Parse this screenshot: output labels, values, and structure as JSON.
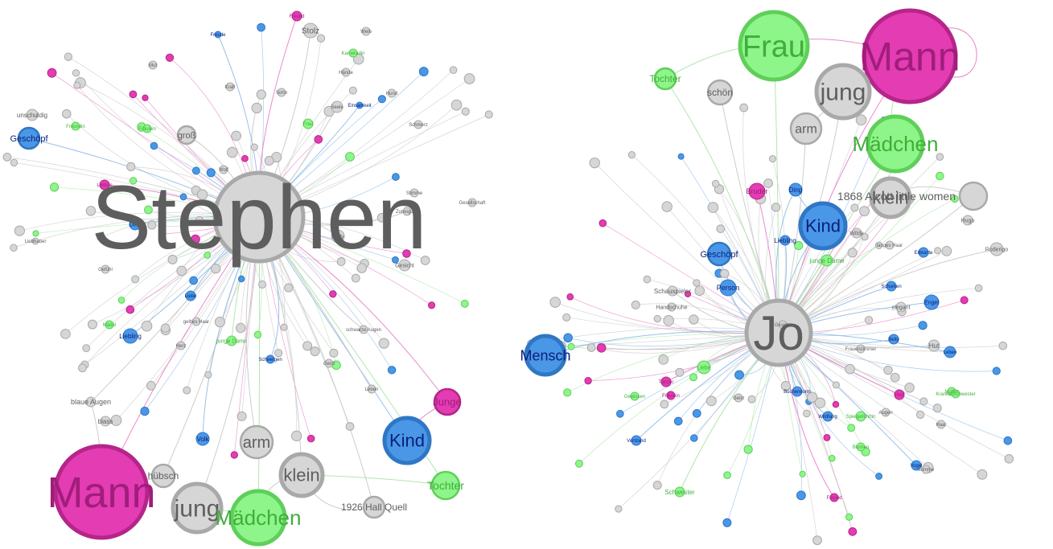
{
  "colors": {
    "gray_fill": "#d6d6d6",
    "gray_stroke": "#a9a9a9",
    "gray_text": "#5e5e5e",
    "blue_fill": "#4a97e8",
    "blue_stroke": "#2f77c4",
    "blue_text": "#0a1f7a",
    "green_fill": "#8ef58a",
    "green_stroke": "#5fcf5a",
    "green_text": "#3fae3a",
    "pink_fill": "#e43cb2",
    "pink_stroke": "#b5258a",
    "pink_text": "#a01d7c",
    "edge_gray": "#c8c8c8",
    "edge_blue": "#8cbbe8",
    "edge_green": "#a9e6a5",
    "edge_pink": "#ea7dc8"
  },
  "left_graph": {
    "name": "1926 Hall Quell network",
    "nodes": [
      {
        "id": "l1",
        "label": "Stephen",
        "cat": "gray"
      },
      {
        "id": "l2",
        "label": "Mann",
        "cat": "pink"
      },
      {
        "id": "l3",
        "label": "jung",
        "cat": "gray"
      },
      {
        "id": "l4",
        "label": "Mädchen",
        "cat": "green"
      },
      {
        "id": "l5",
        "label": "klein",
        "cat": "gray"
      },
      {
        "id": "l6",
        "label": "Kind",
        "cat": "blue"
      },
      {
        "id": "l7",
        "label": "arm",
        "cat": "gray"
      },
      {
        "id": "l8",
        "label": "hübsch",
        "cat": "gray"
      },
      {
        "id": "l9",
        "label": "Tochter",
        "cat": "green"
      },
      {
        "id": "l10",
        "label": "Junge",
        "cat": "pink"
      },
      {
        "id": "l11",
        "label": "1926 Hall Quell",
        "cat": "gray"
      },
      {
        "id": "l12",
        "label": "Geschöpf",
        "cat": "blue"
      },
      {
        "id": "l13",
        "label": "groß",
        "cat": "gray"
      },
      {
        "id": "l14",
        "label": "Stolz",
        "cat": "gray"
      },
      {
        "id": "l15",
        "label": "unschuldig",
        "cat": "gray"
      },
      {
        "id": "l16",
        "label": "blaue Augen",
        "cat": "gray"
      },
      {
        "id": "l17",
        "label": "blass",
        "cat": "gray"
      },
      {
        "id": "l18",
        "label": "Volk",
        "cat": "blue"
      },
      {
        "id": "l19",
        "label": "Liebling",
        "cat": "blue"
      },
      {
        "id": "l20",
        "label": "Ding",
        "cat": "blue"
      },
      {
        "id": "l21",
        "label": "Lady",
        "cat": "gray"
      },
      {
        "id": "l22",
        "label": "Gesicht",
        "cat": "gray"
      },
      {
        "id": "l23",
        "label": "junge Dame",
        "cat": "green"
      },
      {
        "id": "l24",
        "label": "Liebe",
        "cat": "blue"
      },
      {
        "id": "l25",
        "label": "Mut",
        "cat": "gray"
      },
      {
        "id": "l26",
        "label": "Kraft",
        "cat": "gray"
      },
      {
        "id": "l27",
        "label": "Hund",
        "cat": "gray"
      },
      {
        "id": "l28",
        "label": "Seele",
        "cat": "gray"
      },
      {
        "id": "l29",
        "label": "Zuneigung",
        "cat": "gray"
      },
      {
        "id": "l30",
        "label": "Schweigen",
        "cat": "blue"
      },
      {
        "id": "l31",
        "label": "Freundin",
        "cat": "green"
      },
      {
        "id": "l32",
        "label": "Sohn",
        "cat": "gray"
      },
      {
        "id": "l33",
        "label": "Wolf",
        "cat": "gray"
      },
      {
        "id": "l34",
        "label": "Hände",
        "cat": "gray"
      },
      {
        "id": "l35",
        "label": "Fräulein",
        "cat": "green"
      },
      {
        "id": "l36",
        "label": "Frau",
        "cat": "green"
      },
      {
        "id": "l37",
        "label": "Einsamkeit",
        "cat": "blue"
      },
      {
        "id": "l38",
        "label": "Weib",
        "cat": "gray"
      },
      {
        "id": "l39",
        "label": "Schmerz",
        "cat": "gray"
      },
      {
        "id": "l40",
        "label": "Freund",
        "cat": "pink"
      },
      {
        "id": "l41",
        "label": "gelbes Haar",
        "cat": "gray"
      },
      {
        "id": "l42",
        "label": "schwarze Augen",
        "cat": "gray"
      },
      {
        "id": "l43",
        "label": "Gefühl",
        "cat": "gray"
      },
      {
        "id": "l44",
        "label": "Liebhaber",
        "cat": "gray"
      },
      {
        "id": "l45",
        "label": "Leben",
        "cat": "gray"
      },
      {
        "id": "l46",
        "label": "Gesellschaft",
        "cat": "gray"
      },
      {
        "id": "l47",
        "label": "Freude",
        "cat": "blue"
      },
      {
        "id": "l48",
        "label": "Herz",
        "cat": "gray"
      },
      {
        "id": "l49",
        "label": "Geist",
        "cat": "gray"
      },
      {
        "id": "l50",
        "label": "Stimme",
        "cat": "gray"
      },
      {
        "id": "l51",
        "label": "Mädel",
        "cat": "green"
      },
      {
        "id": "l52",
        "label": "Liebste",
        "cat": "pink"
      },
      {
        "id": "l53",
        "label": "Kameradin",
        "cat": "green"
      }
    ]
  },
  "right_graph": {
    "name": "1868 Alcott little women network",
    "nodes": [
      {
        "id": "r1",
        "label": "Jo",
        "cat": "gray"
      },
      {
        "id": "r2",
        "label": "Mann",
        "cat": "pink"
      },
      {
        "id": "r3",
        "label": "Frau",
        "cat": "green"
      },
      {
        "id": "r4",
        "label": "jung",
        "cat": "gray"
      },
      {
        "id": "r5",
        "label": "Mädchen",
        "cat": "green"
      },
      {
        "id": "r6",
        "label": "klein",
        "cat": "gray"
      },
      {
        "id": "r7",
        "label": "1868 Alcott little women",
        "cat": "gray"
      },
      {
        "id": "r8",
        "label": "Kind",
        "cat": "blue"
      },
      {
        "id": "r9",
        "label": "Mensch",
        "cat": "blue"
      },
      {
        "id": "r10",
        "label": "arm",
        "cat": "gray"
      },
      {
        "id": "r11",
        "label": "schön",
        "cat": "gray"
      },
      {
        "id": "r12",
        "label": "Tochter",
        "cat": "green"
      },
      {
        "id": "r13",
        "label": "Geschöpf",
        "cat": "blue"
      },
      {
        "id": "r14",
        "label": "Person",
        "cat": "blue"
      },
      {
        "id": "r15",
        "label": "Ding",
        "cat": "blue"
      },
      {
        "id": "r16",
        "label": "Bruder",
        "cat": "pink"
      },
      {
        "id": "r17",
        "label": "Liebling",
        "cat": "blue"
      },
      {
        "id": "r18",
        "label": "junge Dame",
        "cat": "green"
      },
      {
        "id": "r19",
        "label": "Schauspieler",
        "cat": "gray"
      },
      {
        "id": "r20",
        "label": "Handschuhe",
        "cat": "gray"
      },
      {
        "id": "r21",
        "label": "Hut",
        "cat": "gray"
      },
      {
        "id": "r22",
        "label": "Engel",
        "cat": "blue"
      },
      {
        "id": "r23",
        "label": "Hugo",
        "cat": "gray"
      },
      {
        "id": "r24",
        "label": "Roderigo",
        "cat": "gray"
      },
      {
        "id": "r25",
        "label": "Wilde",
        "cat": "gray"
      },
      {
        "id": "r26",
        "label": "Schwester",
        "cat": "green"
      },
      {
        "id": "r27",
        "label": "Liebe",
        "cat": "green"
      },
      {
        "id": "r28",
        "label": "elegant",
        "cat": "gray"
      },
      {
        "id": "r29",
        "label": "Betty",
        "cat": "blue"
      },
      {
        "id": "r30",
        "label": "Leben",
        "cat": "blue"
      },
      {
        "id": "r31",
        "label": "langes Haar",
        "cat": "gray"
      },
      {
        "id": "r32",
        "label": "Erbtante",
        "cat": "blue"
      },
      {
        "id": "r33",
        "label": "Schurken",
        "cat": "blue"
      },
      {
        "id": "r34",
        "label": "Frauenzimmer",
        "cat": "gray"
      },
      {
        "id": "r35",
        "label": "Bücherwurm",
        "cat": "blue"
      },
      {
        "id": "r36",
        "label": "Wildfang",
        "cat": "blue"
      },
      {
        "id": "r37",
        "label": "Spielgefährtin",
        "cat": "green"
      },
      {
        "id": "r38",
        "label": "Freund",
        "cat": "pink"
      },
      {
        "id": "r39",
        "label": "Herr",
        "cat": "pink"
      },
      {
        "id": "r40",
        "label": "Mutter",
        "cat": "green"
      },
      {
        "id": "r41",
        "label": "Vogel",
        "cat": "blue"
      },
      {
        "id": "r42",
        "label": "Blumen",
        "cat": "green"
      },
      {
        "id": "r43",
        "label": "Verstand",
        "cat": "blue"
      },
      {
        "id": "r44",
        "label": "Tänzer",
        "cat": "pink"
      },
      {
        "id": "r45",
        "label": "Gesicht",
        "cat": "gray"
      },
      {
        "id": "r46",
        "label": "Geist",
        "cat": "gray"
      },
      {
        "id": "r47",
        "label": "Fräulein",
        "cat": "pink"
      },
      {
        "id": "r48",
        "label": "Krankenschwester",
        "cat": "green"
      },
      {
        "id": "r49",
        "label": "Gewissen",
        "cat": "green"
      },
      {
        "id": "r50",
        "label": "Stimme",
        "cat": "gray"
      },
      {
        "id": "r51",
        "label": "Augen",
        "cat": "gray"
      },
      {
        "id": "r52",
        "label": "Haar",
        "cat": "gray"
      }
    ]
  }
}
